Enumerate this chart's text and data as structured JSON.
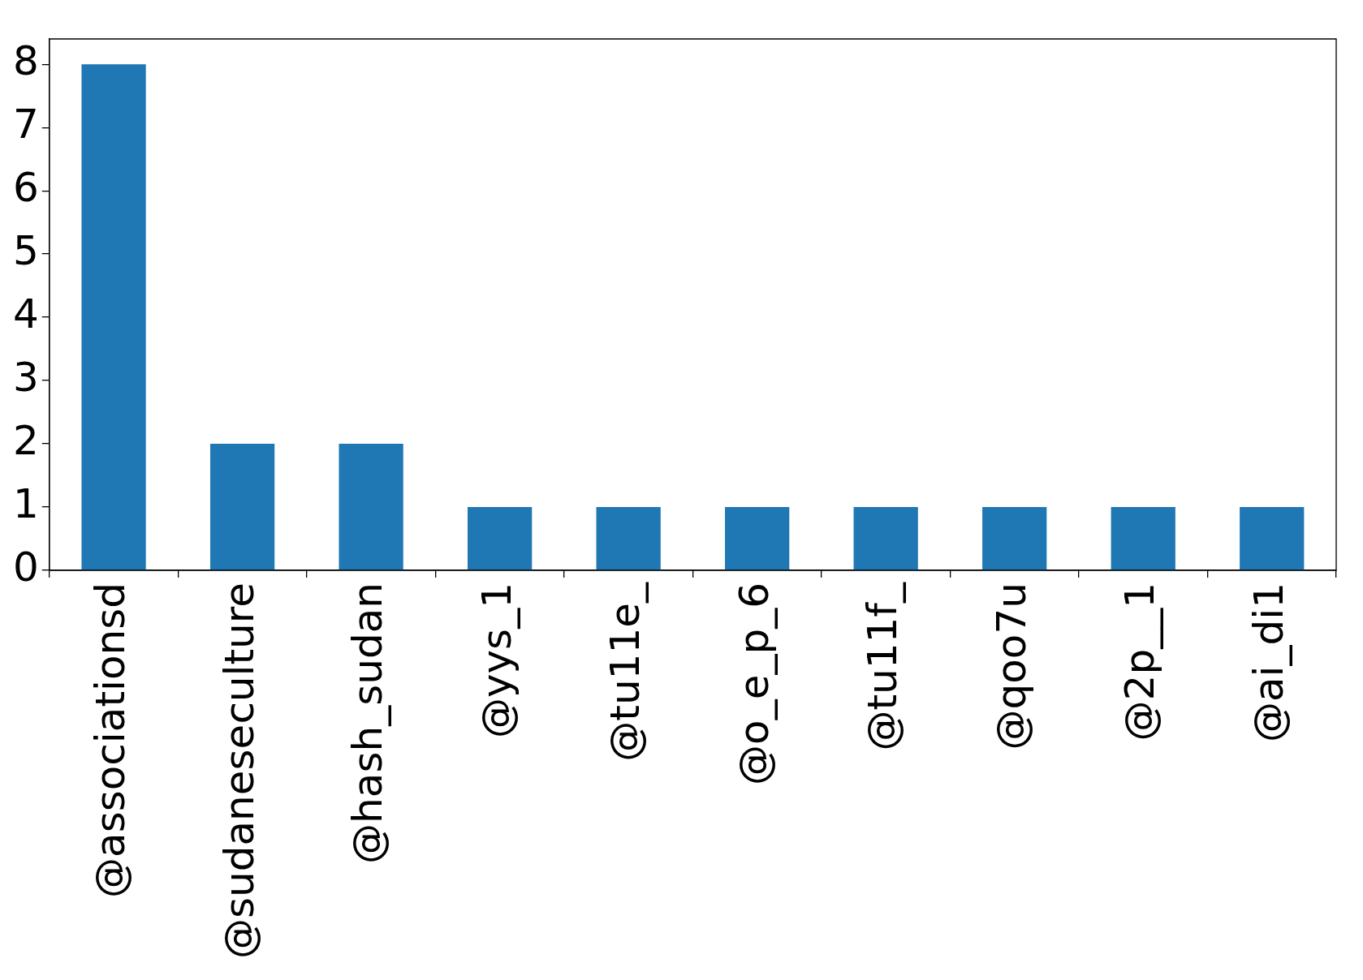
{
  "chart_data": {
    "type": "bar",
    "categories": [
      "@associationsd",
      "@sudaneseculture",
      "@hash_sudan",
      "@yys_1",
      "@tu11e_",
      "@o_e_p_6",
      "@tu11f_",
      "@qoo7u",
      "@2p__1",
      "@ai_di1"
    ],
    "values": [
      8,
      2,
      2,
      1,
      1,
      1,
      1,
      1,
      1,
      1
    ],
    "color": "#1f77b4",
    "ylim": [
      0,
      8.4
    ],
    "yticks": [
      0,
      1,
      2,
      3,
      4,
      5,
      6,
      7,
      8
    ]
  }
}
